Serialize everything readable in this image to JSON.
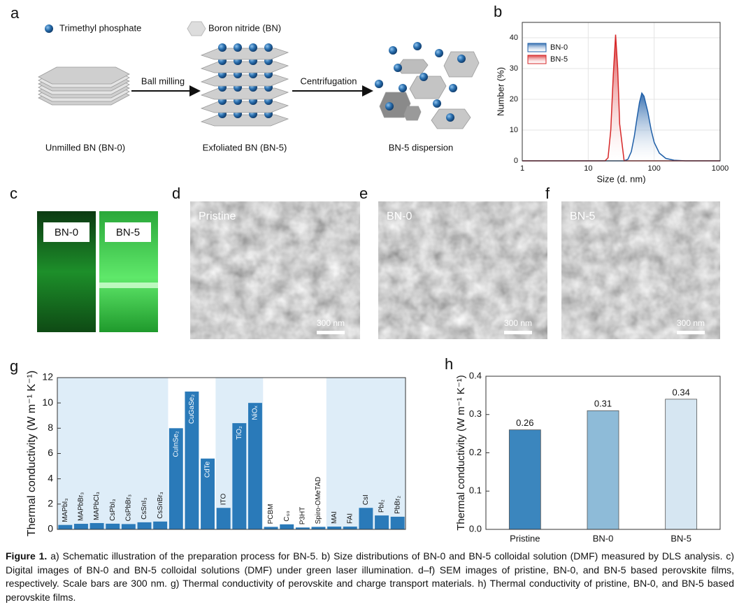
{
  "panel_labels": [
    "a",
    "b",
    "c",
    "d",
    "e",
    "f",
    "g",
    "h"
  ],
  "schematic": {
    "legend": [
      "Trimethyl phosphate",
      "Boron nitride (BN)"
    ],
    "steps": [
      "Ball milling",
      "Centrifugation"
    ],
    "stages": [
      "Unmilled BN (BN-0)",
      "Exfoliated BN (BN-5)",
      "BN-5 dispersion"
    ]
  },
  "photos": {
    "labels": [
      "BN-0",
      "BN-5"
    ]
  },
  "sem": [
    {
      "label": "Pristine",
      "scale": "300 nm"
    },
    {
      "label": "BN-0",
      "scale": "300 nm"
    },
    {
      "label": "BN-5",
      "scale": "300 nm"
    }
  ],
  "chart_data": [
    {
      "type": "line",
      "xlabel": "Size (d. nm)",
      "ylabel": "Number (%)",
      "log_x": true,
      "grid": true,
      "legend": "upper left",
      "x": [
        1,
        10,
        18,
        20,
        22,
        24,
        26,
        28,
        30,
        35,
        40,
        45,
        50,
        55,
        60,
        65,
        70,
        80,
        90,
        100,
        120,
        150,
        200,
        300,
        1000
      ],
      "series": [
        {
          "name": "BN-0",
          "color": "#1f5fa8",
          "values": [
            0,
            0,
            0,
            0,
            0,
            0,
            0,
            0,
            0,
            0,
            0.5,
            3,
            8,
            14,
            19,
            22,
            21,
            16,
            10,
            6,
            2.5,
            0.8,
            0.2,
            0,
            0
          ]
        },
        {
          "name": "BN-5",
          "color": "#d62728",
          "values": [
            0,
            0,
            0,
            1,
            10,
            28,
            41,
            30,
            12,
            0,
            0,
            0,
            0,
            0,
            0,
            0,
            0,
            0,
            0,
            0,
            0,
            0,
            0,
            0,
            0
          ]
        }
      ],
      "xlim": [
        1,
        1000
      ],
      "xticks": [
        1,
        10,
        100,
        1000
      ],
      "ylim": [
        0,
        45
      ],
      "yticks": [
        0,
        10,
        20,
        30,
        40
      ]
    },
    {
      "type": "bar",
      "ylabel": "Thermal conductivity (W m⁻¹ K⁻¹)",
      "color": "#2a7ab9",
      "categories": [
        "MAPbI₃",
        "MAPbBr₃",
        "MAPbCl₃",
        "CsPbI₃",
        "CsPbBr₃",
        "CsSnI₃",
        "CsSnBr₃",
        "CuInSe₂",
        "CuGaSe₂",
        "CdTe",
        "ITO",
        "TiO₂",
        "NiOₓ",
        "PCBM",
        "C₆₀",
        "P3HT",
        "Spiro-OMeTAD",
        "MAI",
        "FAI",
        "CsI",
        "PbI₂",
        "PbBr₂"
      ],
      "values": [
        0.35,
        0.44,
        0.5,
        0.45,
        0.42,
        0.56,
        0.62,
        8.0,
        10.9,
        5.6,
        1.7,
        8.4,
        10.0,
        0.2,
        0.4,
        0.15,
        0.2,
        0.22,
        0.22,
        1.7,
        1.1,
        1.0
      ],
      "ylim": [
        0,
        12
      ],
      "yticks": [
        0,
        2,
        4,
        6,
        8,
        10,
        12
      ]
    },
    {
      "type": "bar",
      "ylabel": "Thermal conductivity (W m⁻¹ K⁻¹)",
      "categories": [
        "Pristine",
        "BN-0",
        "BN-5"
      ],
      "values": [
        0.26,
        0.31,
        0.34
      ],
      "colors": [
        "#3b86be",
        "#8ebbd8",
        "#d6e6f2"
      ],
      "ylim": [
        0,
        0.4
      ],
      "yticks": [
        {
          "value": 0,
          "label": "0.0"
        },
        0.1,
        0.2,
        0.3,
        0.4
      ]
    }
  ],
  "caption": {
    "label": "Figure 1.",
    "text": "a) Schematic illustration of the preparation process for BN-5. b) Size distributions of BN-0 and BN-5 colloidal solution (DMF) measured by DLS analysis. c) Digital images of BN-0 and BN-5 colloidal solutions (DMF) under green laser illumination. d–f) SEM images of pristine, BN-0, and BN-5 based perovskite films, respectively. Scale bars are 300 nm. g) Thermal conductivity of perovskite and charge transport materials. h) Thermal conductivity of pristine, BN-0, and BN-5 based perovskite films."
  }
}
